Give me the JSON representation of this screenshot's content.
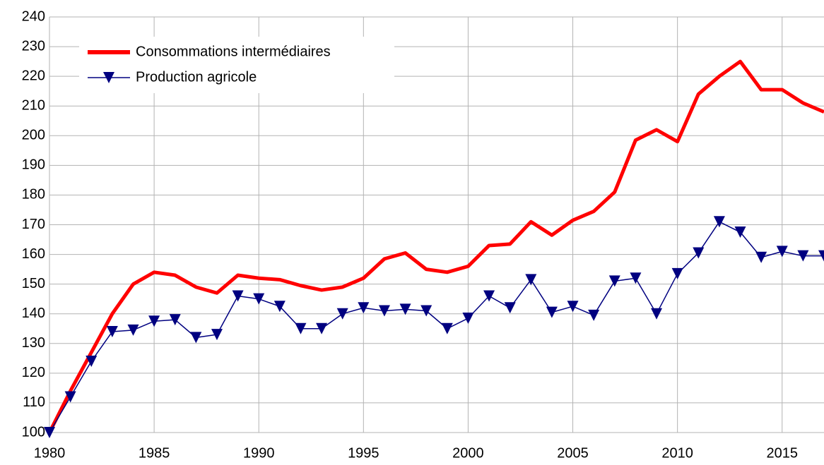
{
  "chart_data": {
    "type": "line",
    "x": [
      1980,
      1981,
      1982,
      1983,
      1984,
      1985,
      1986,
      1987,
      1988,
      1989,
      1990,
      1991,
      1992,
      1993,
      1994,
      1995,
      1996,
      1997,
      1998,
      1999,
      2000,
      2001,
      2002,
      2003,
      2004,
      2005,
      2006,
      2007,
      2008,
      2009,
      2010,
      2011,
      2012,
      2013,
      2014,
      2015,
      2016,
      2017
    ],
    "series": [
      {
        "name": "Consommations intermédiaires",
        "color": "#ff0000",
        "marker": "none",
        "values": [
          100,
          114,
          127,
          140,
          150,
          154,
          153,
          149,
          147,
          153,
          152,
          151.5,
          149.5,
          148,
          149,
          152,
          158.5,
          160.5,
          155,
          154,
          156,
          163,
          163.5,
          171,
          166.5,
          171.5,
          174.5,
          181,
          198.5,
          202,
          198,
          214,
          220,
          225,
          215.5,
          215.5,
          211,
          208
        ]
      },
      {
        "name": "Production agricole",
        "color": "#000080",
        "marker": "triangle-down",
        "values": [
          100,
          112,
          124,
          134,
          134.5,
          137.5,
          138,
          132,
          133,
          146,
          145,
          142.5,
          135,
          135,
          140,
          142,
          141,
          141.5,
          141,
          135,
          138.5,
          146,
          142,
          151.5,
          140.5,
          142.5,
          139.5,
          151,
          152,
          140,
          153.5,
          160.5,
          171,
          167.5,
          159,
          161,
          159.5,
          159.5
        ]
      }
    ],
    "xlim": [
      1980,
      2017
    ],
    "xticks": [
      1980,
      1985,
      1990,
      1995,
      2000,
      2005,
      2010,
      2015
    ],
    "ylim": [
      100,
      240
    ],
    "yticks": [
      100,
      110,
      120,
      130,
      140,
      150,
      160,
      170,
      180,
      190,
      200,
      210,
      220,
      230,
      240
    ],
    "grid": true,
    "legend": "top-left"
  }
}
